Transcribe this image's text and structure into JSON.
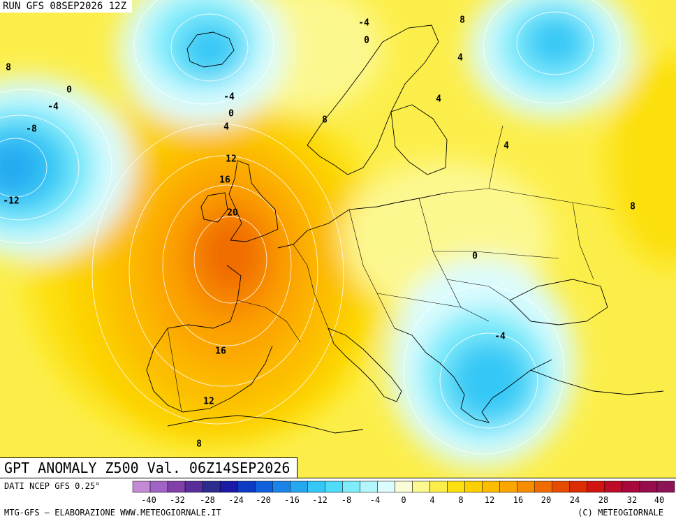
{
  "header": {
    "run": "RUN GFS 08SEP2026 12Z",
    "valid": "GPT ANOMALY Z500 Val. 06Z14SEP2026"
  },
  "footer": {
    "source": "DATI NCEP GFS 0.25°",
    "elaboration": "MTG-GFS — ELABORAZIONE WWW.METEOGIORNALE.IT",
    "copyright": "(C) METEOGIORNALE"
  },
  "scale": {
    "ticks": [
      "-40",
      "-32",
      "-28",
      "-24",
      "-20",
      "-16",
      "-12",
      "-8",
      "-4",
      "0",
      "4",
      "8",
      "12",
      "16",
      "20",
      "24",
      "28",
      "32",
      "40"
    ],
    "colors": [
      "#c58ad6",
      "#a064c4",
      "#8040a8",
      "#5a2e9a",
      "#2c2c8e",
      "#1a1aa6",
      "#0c3cc4",
      "#1060dc",
      "#1c84e8",
      "#26a8f0",
      "#34c8f6",
      "#4edcf8",
      "#7eecfa",
      "#b2f6fc",
      "#dcfcfe",
      "#fafcd6",
      "#fcf890",
      "#fcee4a",
      "#fce010",
      "#fcd000",
      "#fcbc00",
      "#fca600",
      "#f88c00",
      "#f06c00",
      "#e64c00",
      "#dc2c00",
      "#d01410",
      "#bc0c28",
      "#a8083c",
      "#960c4c",
      "#8c1456"
    ]
  },
  "map_labels": [
    {
      "text": "8"
    },
    {
      "text": "0"
    },
    {
      "text": "-4"
    },
    {
      "text": "-8"
    },
    {
      "text": "-12"
    },
    {
      "text": "-4"
    },
    {
      "text": "0"
    },
    {
      "text": "4"
    },
    {
      "text": "12"
    },
    {
      "text": "16"
    },
    {
      "text": "20"
    },
    {
      "text": "8"
    },
    {
      "text": "-4"
    },
    {
      "text": "0"
    },
    {
      "text": "8"
    },
    {
      "text": "4"
    },
    {
      "text": "4"
    },
    {
      "text": "4"
    },
    {
      "text": "8"
    },
    {
      "text": "0"
    },
    {
      "text": "-4"
    },
    {
      "text": "16"
    },
    {
      "text": "12"
    },
    {
      "text": "8"
    }
  ]
}
